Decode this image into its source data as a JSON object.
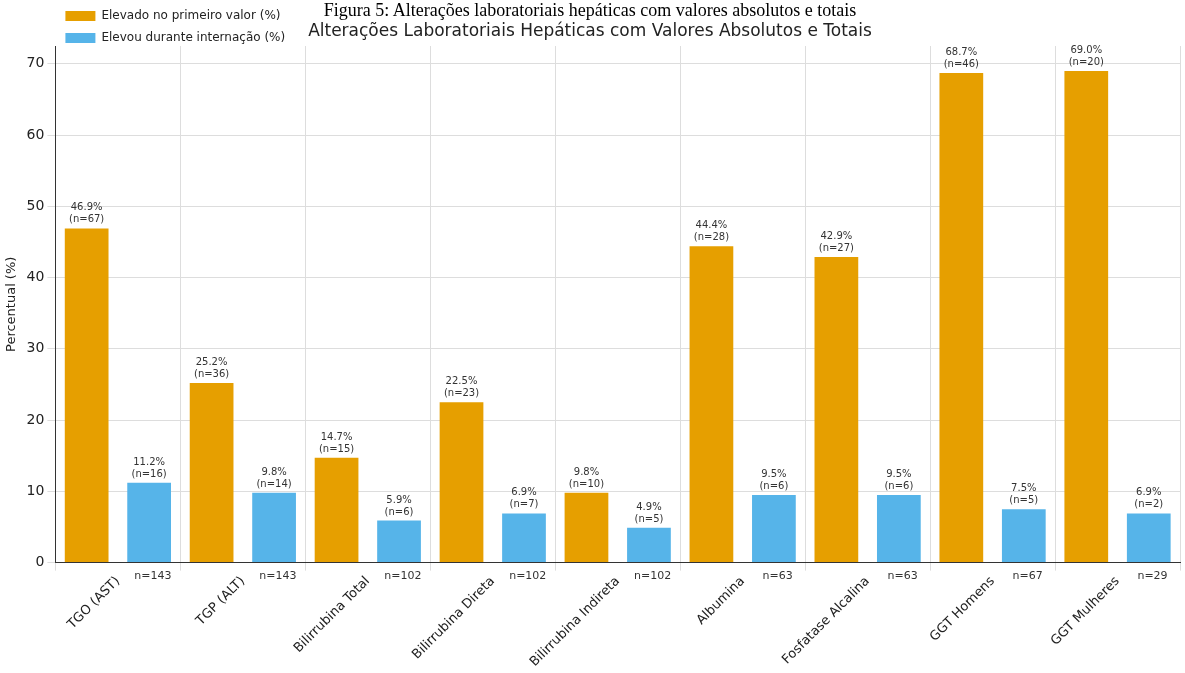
{
  "chart_data": {
    "type": "bar",
    "title": "Figura 5: Alterações laboratoriais hepáticas com valores absolutos e totais",
    "subtitle": "Alterações Laboratoriais Hepáticas com Valores Absolutos e Totais",
    "ylabel": "Percentual (%)",
    "categories": [
      "TGO (AST)",
      "TGP (ALT)",
      "Bilirrubina Total",
      "Bilirrubina Direta",
      "Bilirrubina Indireta",
      "Albumina",
      "Fosfatase Alcalina",
      "GGT Homens",
      "GGT Mulheres"
    ],
    "series": [
      {
        "name": "Elevado no primeiro valor (%)",
        "color": "#e69f00",
        "values": [
          46.9,
          25.2,
          14.7,
          22.5,
          9.8,
          44.4,
          42.9,
          68.7,
          69.0
        ],
        "value_labels": [
          "46.9%\n(n=67)",
          "25.2%\n(n=36)",
          "14.7%\n(n=15)",
          "22.5%\n(n=23)",
          "9.8%\n(n=10)",
          "44.4%\n(n=28)",
          "42.9%\n(n=27)",
          "68.7%\n(n=46)",
          "69.0%\n(n=20)"
        ]
      },
      {
        "name": "Elevou durante internação (%)",
        "color": "#56b4e9",
        "values": [
          11.2,
          9.8,
          5.9,
          6.9,
          4.9,
          9.5,
          9.5,
          7.5,
          6.9
        ],
        "value_labels": [
          "11.2%\n(n=16)",
          "9.8%\n(n=14)",
          "5.9%\n(n=6)",
          "6.9%\n(n=7)",
          "4.9%\n(n=5)",
          "9.5%\n(n=6)",
          "9.5%\n(n=6)",
          "7.5%\n(n=5)",
          "6.9%\n(n=2)"
        ]
      }
    ],
    "annotations": [
      "n=143",
      "n=143",
      "n=102",
      "n=102",
      "n=102",
      "n=63",
      "n=63",
      "n=67",
      "n=29"
    ],
    "ylim": [
      0,
      72.5
    ],
    "yticks": [
      0,
      10,
      20,
      30,
      40,
      50,
      60,
      70
    ],
    "grid": true,
    "legend": "top left"
  }
}
